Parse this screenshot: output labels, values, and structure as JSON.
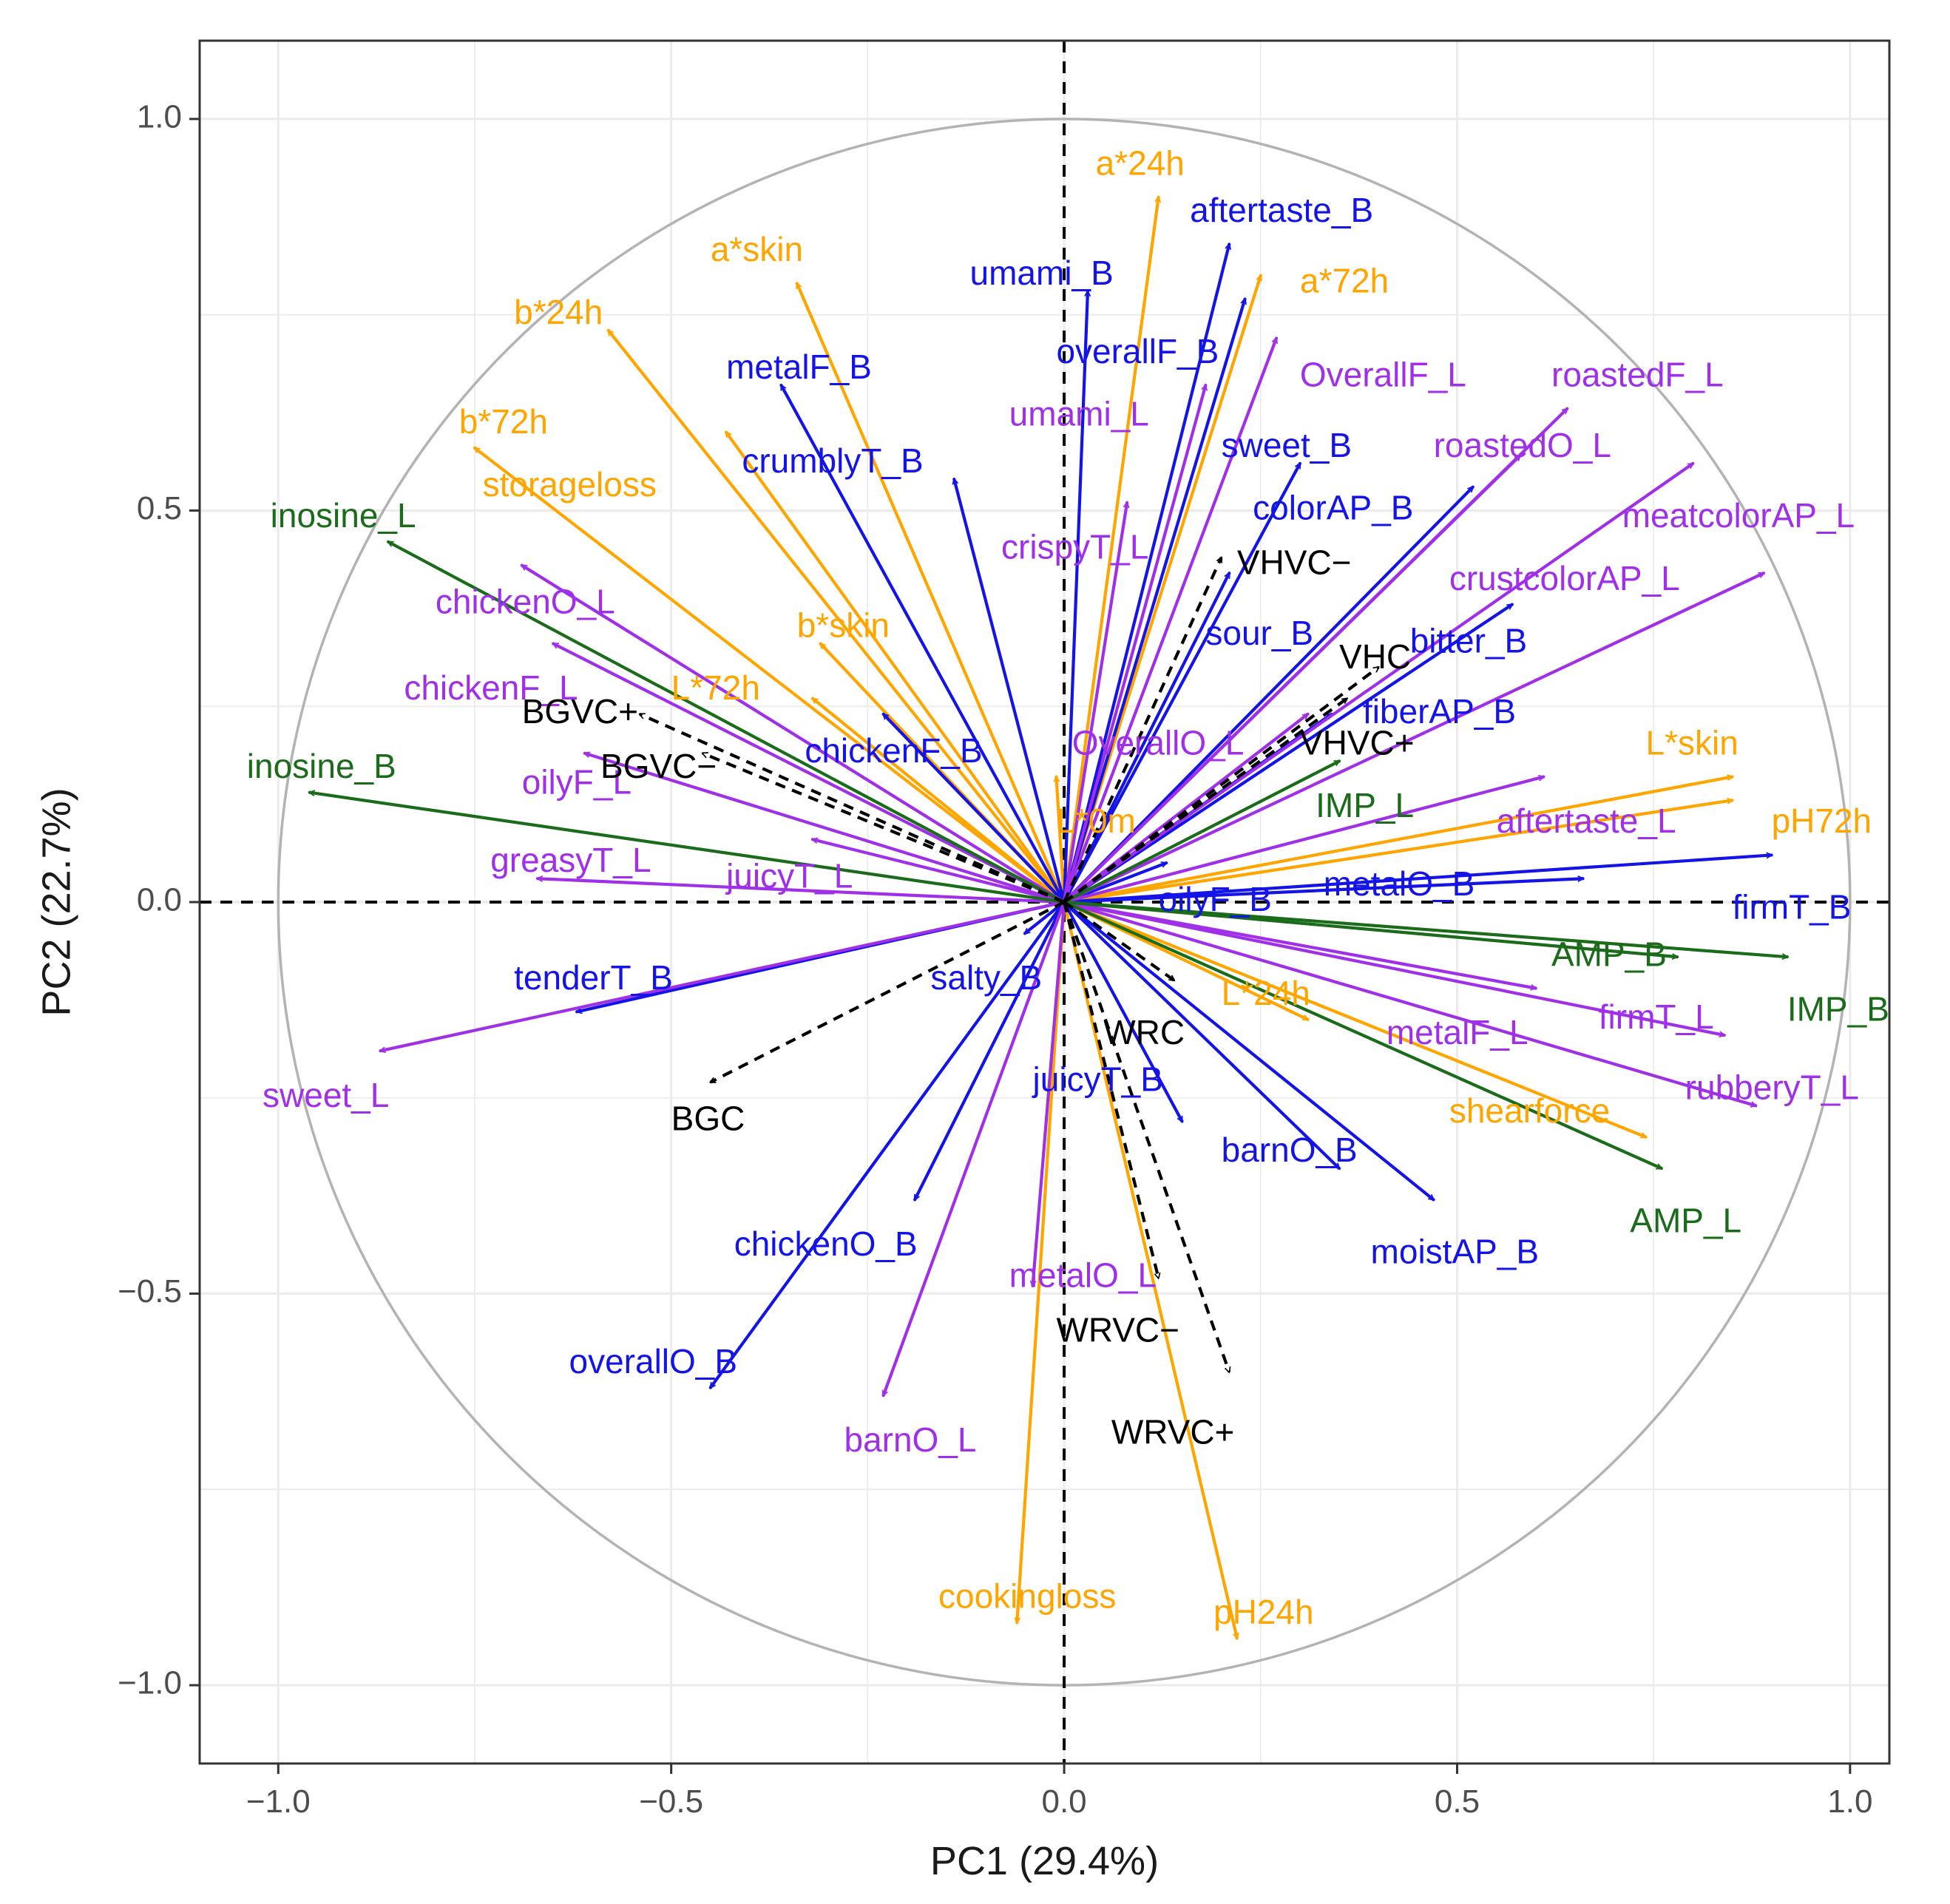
{
  "chart_data": {
    "type": "scatter",
    "subtype": "pca-biplot-correlation-circle",
    "title": "",
    "xlabel": "PC1 (29.4%)",
    "ylabel": "PC2 (22.7%)",
    "xlim": [
      -1.1,
      1.05
    ],
    "ylim": [
      -1.1,
      1.1
    ],
    "x_ticks": [
      -1.0,
      -0.5,
      0.0,
      0.5,
      1.0
    ],
    "x_tick_labels": [
      "−1.0",
      "−0.5",
      "0.0",
      "0.5",
      "1.0"
    ],
    "y_ticks": [
      -1.0,
      -0.5,
      0.0,
      0.5,
      1.0
    ],
    "y_tick_labels": [
      "−1.0",
      "−0.5",
      "0.0",
      "0.5",
      "1.0"
    ],
    "grid": true,
    "unit_circle": true,
    "reference_lines": "dashed lines at x = 0 and y = 0",
    "colors": {
      "orange": "#FFA500",
      "blue": "#1414E6",
      "purple": "#A030E8",
      "green": "#1A6B1A",
      "black": "#000000"
    },
    "vectors": [
      {
        "label": "a*24h",
        "color": "orange",
        "x": 0.12,
        "y": 0.9
      },
      {
        "label": "a*72h",
        "color": "orange",
        "x": 0.25,
        "y": 0.8
      },
      {
        "label": "a*skin",
        "color": "orange",
        "x": -0.34,
        "y": 0.79
      },
      {
        "label": "b*24h",
        "color": "orange",
        "x": -0.58,
        "y": 0.73
      },
      {
        "label": "b*72h",
        "color": "orange",
        "x": -0.75,
        "y": 0.58
      },
      {
        "label": "storageloss",
        "color": "orange",
        "x": -0.43,
        "y": 0.6
      },
      {
        "label": "b*skin",
        "color": "orange",
        "x": -0.31,
        "y": 0.33
      },
      {
        "label": "L*72h",
        "color": "orange",
        "x": -0.32,
        "y": 0.26
      },
      {
        "label": "L*skin",
        "color": "orange",
        "x": 0.85,
        "y": 0.16
      },
      {
        "label": "pH72h",
        "color": "orange",
        "x": 0.85,
        "y": 0.13
      },
      {
        "label": "L*24h",
        "color": "orange",
        "x": 0.31,
        "y": -0.15
      },
      {
        "label": "shearforce",
        "color": "orange",
        "x": 0.74,
        "y": -0.3
      },
      {
        "label": "cookingloss",
        "color": "orange",
        "x": -0.06,
        "y": -0.92
      },
      {
        "label": "pH24h",
        "color": "orange",
        "x": 0.22,
        "y": -0.94
      },
      {
        "label": "L*0m",
        "color": "orange",
        "x": -0.01,
        "y": 0.16
      },
      {
        "label": "aftertaste_B",
        "color": "blue",
        "x": 0.21,
        "y": 0.84
      },
      {
        "label": "umami_B",
        "color": "blue",
        "x": 0.03,
        "y": 0.78
      },
      {
        "label": "overallF_B",
        "color": "blue",
        "x": 0.23,
        "y": 0.77
      },
      {
        "label": "metalF_B",
        "color": "blue",
        "x": -0.36,
        "y": 0.66
      },
      {
        "label": "crumblyT_B",
        "color": "blue",
        "x": -0.14,
        "y": 0.54
      },
      {
        "label": "sweet_B",
        "color": "blue",
        "x": 0.3,
        "y": 0.56
      },
      {
        "label": "colorAP_B",
        "color": "blue",
        "x": 0.52,
        "y": 0.53
      },
      {
        "label": "sour_B",
        "color": "blue",
        "x": 0.21,
        "y": 0.42
      },
      {
        "label": "bitter_B",
        "color": "blue",
        "x": 0.57,
        "y": 0.38
      },
      {
        "label": "fiberAP_B",
        "color": "blue",
        "x": 0.34,
        "y": 0.24
      },
      {
        "label": "chickenF_B",
        "color": "blue",
        "x": -0.23,
        "y": 0.24
      },
      {
        "label": "metalO_B",
        "color": "blue",
        "x": 0.66,
        "y": 0.03
      },
      {
        "label": "firmT_B",
        "color": "blue",
        "x": 0.9,
        "y": 0.06
      },
      {
        "label": "oilyF_B",
        "color": "blue",
        "x": 0.13,
        "y": 0.05
      },
      {
        "label": "tenderT_B",
        "color": "blue",
        "x": -0.62,
        "y": -0.14
      },
      {
        "label": "salty_B",
        "color": "blue",
        "x": -0.05,
        "y": -0.04
      },
      {
        "label": "juicyT_B",
        "color": "blue",
        "x": 0.15,
        "y": -0.28
      },
      {
        "label": "barnO_B",
        "color": "blue",
        "x": 0.35,
        "y": -0.34
      },
      {
        "label": "moistAP_B",
        "color": "blue",
        "x": 0.47,
        "y": -0.38
      },
      {
        "label": "chickenO_B",
        "color": "blue",
        "x": -0.19,
        "y": -0.38
      },
      {
        "label": "overallO_B",
        "color": "blue",
        "x": -0.45,
        "y": -0.62
      },
      {
        "label": "OverallF_L",
        "color": "purple",
        "x": 0.27,
        "y": 0.72
      },
      {
        "label": "umami_L",
        "color": "purple",
        "x": 0.18,
        "y": 0.66
      },
      {
        "label": "roastedF_L",
        "color": "purple",
        "x": 0.64,
        "y": 0.63
      },
      {
        "label": "roastedO_L",
        "color": "purple",
        "x": 0.58,
        "y": 0.57
      },
      {
        "label": "meatcolorAP_L",
        "color": "purple",
        "x": 0.8,
        "y": 0.56
      },
      {
        "label": "crustcolorAP_L",
        "color": "purple",
        "x": 0.89,
        "y": 0.42
      },
      {
        "label": "crispyT_L",
        "color": "purple",
        "x": 0.08,
        "y": 0.51
      },
      {
        "label": "chickenO_L",
        "color": "purple",
        "x": -0.69,
        "y": 0.43
      },
      {
        "label": "chickenF_L",
        "color": "purple",
        "x": -0.65,
        "y": 0.33
      },
      {
        "label": "oilyF_L",
        "color": "purple",
        "x": -0.61,
        "y": 0.19
      },
      {
        "label": "greasyT_L",
        "color": "purple",
        "x": -0.67,
        "y": 0.03
      },
      {
        "label": "juicyT_L",
        "color": "purple",
        "x": -0.32,
        "y": 0.08
      },
      {
        "label": "OverallO_L",
        "color": "purple",
        "x": 0.31,
        "y": 0.24
      },
      {
        "label": "aftertaste_L",
        "color": "purple",
        "x": 0.61,
        "y": 0.16
      },
      {
        "label": "metalF_L",
        "color": "purple",
        "x": 0.6,
        "y": -0.11
      },
      {
        "label": "firmT_L",
        "color": "purple",
        "x": 0.84,
        "y": -0.17
      },
      {
        "label": "rubberyT_L",
        "color": "purple",
        "x": 0.88,
        "y": -0.26
      },
      {
        "label": "sweet_L",
        "color": "purple",
        "x": -0.87,
        "y": -0.19
      },
      {
        "label": "metalO_L",
        "color": "purple",
        "x": -0.04,
        "y": -0.49
      },
      {
        "label": "barnO_L",
        "color": "purple",
        "x": -0.23,
        "y": -0.63
      },
      {
        "label": "inosine_L",
        "color": "green",
        "x": -0.86,
        "y": 0.46
      },
      {
        "label": "inosine_B",
        "color": "green",
        "x": -0.96,
        "y": 0.14
      },
      {
        "label": "IMP_L",
        "color": "green",
        "x": 0.35,
        "y": 0.18
      },
      {
        "label": "AMP_B",
        "color": "green",
        "x": 0.78,
        "y": -0.07
      },
      {
        "label": "IMP_B",
        "color": "green",
        "x": 0.92,
        "y": -0.07
      },
      {
        "label": "AMP_L",
        "color": "green",
        "x": 0.76,
        "y": -0.34
      }
    ],
    "supplementary_vectors": [
      {
        "label": "VHVC−",
        "x": 0.2,
        "y": 0.44
      },
      {
        "label": "VHC",
        "x": 0.4,
        "y": 0.3
      },
      {
        "label": "VHVC+",
        "x": 0.36,
        "y": 0.26
      },
      {
        "label": "BGVC+",
        "x": -0.54,
        "y": 0.24
      },
      {
        "label": "BGVC−",
        "x": -0.46,
        "y": 0.19
      },
      {
        "label": "BGC",
        "x": -0.45,
        "y": -0.23
      },
      {
        "label": "WRC",
        "x": 0.14,
        "y": -0.1
      },
      {
        "label": "WRVC−",
        "x": 0.12,
        "y": -0.48
      },
      {
        "label": "WRVC+",
        "x": 0.21,
        "y": -0.6
      }
    ],
    "label_overlay": [
      {
        "text": "a*24h",
        "color": "orange",
        "lx": 0.04,
        "ly": 0.94,
        "anchor": "start"
      },
      {
        "text": "a*72h",
        "color": "orange",
        "lx": 0.3,
        "ly": 0.79,
        "anchor": "start"
      },
      {
        "text": "a*skin",
        "color": "orange",
        "lx": -0.45,
        "ly": 0.83,
        "anchor": "start"
      },
      {
        "text": "b*24h",
        "color": "orange",
        "lx": -0.7,
        "ly": 0.75,
        "anchor": "start"
      },
      {
        "text": "b*72h",
        "color": "orange",
        "lx": -0.77,
        "ly": 0.61,
        "anchor": "start"
      },
      {
        "text": "storageloss",
        "color": "orange",
        "lx": -0.74,
        "ly": 0.53,
        "anchor": "start"
      },
      {
        "text": "b*skin",
        "color": "orange",
        "lx": -0.34,
        "ly": 0.35,
        "anchor": "start"
      },
      {
        "text": "L*72h",
        "color": "orange",
        "lx": -0.5,
        "ly": 0.27,
        "anchor": "start"
      },
      {
        "text": "L*skin",
        "color": "orange",
        "lx": 0.74,
        "ly": 0.2,
        "anchor": "start"
      },
      {
        "text": "pH72h",
        "color": "orange",
        "lx": 0.9,
        "ly": 0.1,
        "anchor": "start"
      },
      {
        "text": "L*24h",
        "color": "orange",
        "lx": 0.2,
        "ly": -0.12,
        "anchor": "start"
      },
      {
        "text": "shearforce",
        "color": "orange",
        "lx": 0.49,
        "ly": -0.27,
        "anchor": "start"
      },
      {
        "text": "cookingloss",
        "color": "orange",
        "lx": -0.16,
        "ly": -0.89,
        "anchor": "start"
      },
      {
        "text": "pH24h",
        "color": "orange",
        "lx": 0.19,
        "ly": -0.91,
        "anchor": "start"
      },
      {
        "text": "L*0m",
        "color": "orange",
        "lx": -0.01,
        "ly": 0.1,
        "anchor": "start"
      },
      {
        "text": "aftertaste_B",
        "color": "blue",
        "lx": 0.16,
        "ly": 0.88,
        "anchor": "start"
      },
      {
        "text": "umami_B",
        "color": "blue",
        "lx": -0.12,
        "ly": 0.8,
        "anchor": "start"
      },
      {
        "text": "overallF_B",
        "color": "blue",
        "lx": -0.01,
        "ly": 0.7,
        "anchor": "start"
      },
      {
        "text": "metalF_B",
        "color": "blue",
        "lx": -0.43,
        "ly": 0.68,
        "anchor": "start"
      },
      {
        "text": "crumblyT_B",
        "color": "blue",
        "lx": -0.41,
        "ly": 0.56,
        "anchor": "start"
      },
      {
        "text": "sweet_B",
        "color": "blue",
        "lx": 0.2,
        "ly": 0.58,
        "anchor": "start"
      },
      {
        "text": "colorAP_B",
        "color": "blue",
        "lx": 0.24,
        "ly": 0.5,
        "anchor": "start"
      },
      {
        "text": "sour_B",
        "color": "blue",
        "lx": 0.18,
        "ly": 0.34,
        "anchor": "start"
      },
      {
        "text": "bitter_B",
        "color": "blue",
        "lx": 0.44,
        "ly": 0.33,
        "anchor": "start"
      },
      {
        "text": "fiberAP_B",
        "color": "blue",
        "lx": 0.38,
        "ly": 0.24,
        "anchor": "start"
      },
      {
        "text": "chickenF_B",
        "color": "blue",
        "lx": -0.33,
        "ly": 0.19,
        "anchor": "start"
      },
      {
        "text": "metalO_B",
        "color": "blue",
        "lx": 0.33,
        "ly": 0.02,
        "anchor": "start"
      },
      {
        "text": "firmT_B",
        "color": "blue",
        "lx": 0.85,
        "ly": -0.01,
        "anchor": "start"
      },
      {
        "text": "oilyF_B",
        "color": "blue",
        "lx": 0.12,
        "ly": 0.0,
        "anchor": "start"
      },
      {
        "text": "tenderT_B",
        "color": "blue",
        "lx": -0.7,
        "ly": -0.1,
        "anchor": "start"
      },
      {
        "text": "salty_B",
        "color": "blue",
        "lx": -0.17,
        "ly": -0.1,
        "anchor": "start"
      },
      {
        "text": "juicyT_B",
        "color": "blue",
        "lx": -0.04,
        "ly": -0.23,
        "anchor": "start"
      },
      {
        "text": "barnO_B",
        "color": "blue",
        "lx": 0.2,
        "ly": -0.32,
        "anchor": "start"
      },
      {
        "text": "moistAP_B",
        "color": "blue",
        "lx": 0.39,
        "ly": -0.45,
        "anchor": "start"
      },
      {
        "text": "chickenO_B",
        "color": "blue",
        "lx": -0.42,
        "ly": -0.44,
        "anchor": "start"
      },
      {
        "text": "overallO_B",
        "color": "blue",
        "lx": -0.63,
        "ly": -0.59,
        "anchor": "start"
      },
      {
        "text": "OverallF_L",
        "color": "purple",
        "lx": 0.3,
        "ly": 0.67,
        "anchor": "start"
      },
      {
        "text": "umami_L",
        "color": "purple",
        "lx": -0.07,
        "ly": 0.62,
        "anchor": "start"
      },
      {
        "text": "roastedF_L",
        "color": "purple",
        "lx": 0.62,
        "ly": 0.67,
        "anchor": "start"
      },
      {
        "text": "roastedO_L",
        "color": "purple",
        "lx": 0.47,
        "ly": 0.58,
        "anchor": "start"
      },
      {
        "text": "meatcolorAP_L",
        "color": "purple",
        "lx": 0.71,
        "ly": 0.49,
        "anchor": "start"
      },
      {
        "text": "crustcolorAP_L",
        "color": "purple",
        "lx": 0.49,
        "ly": 0.41,
        "anchor": "start"
      },
      {
        "text": "crispyT_L",
        "color": "purple",
        "lx": -0.08,
        "ly": 0.45,
        "anchor": "start"
      },
      {
        "text": "chickenO_L",
        "color": "purple",
        "lx": -0.8,
        "ly": 0.38,
        "anchor": "start"
      },
      {
        "text": "chickenF_L",
        "color": "purple",
        "lx": -0.84,
        "ly": 0.27,
        "anchor": "start"
      },
      {
        "text": "oilyF_L",
        "color": "purple",
        "lx": -0.69,
        "ly": 0.15,
        "anchor": "start"
      },
      {
        "text": "greasyT_L",
        "color": "purple",
        "lx": -0.73,
        "ly": 0.05,
        "anchor": "start"
      },
      {
        "text": "juicyT_L",
        "color": "purple",
        "lx": -0.43,
        "ly": 0.03,
        "anchor": "start"
      },
      {
        "text": "OverallO_L",
        "color": "purple",
        "lx": 0.01,
        "ly": 0.2,
        "anchor": "start"
      },
      {
        "text": "aftertaste_L",
        "color": "purple",
        "lx": 0.55,
        "ly": 0.1,
        "anchor": "start"
      },
      {
        "text": "metalF_L",
        "color": "purple",
        "lx": 0.41,
        "ly": -0.17,
        "anchor": "start"
      },
      {
        "text": "firmT_L",
        "color": "purple",
        "lx": 0.68,
        "ly": -0.15,
        "anchor": "start"
      },
      {
        "text": "rubberyT_L",
        "color": "purple",
        "lx": 0.79,
        "ly": -0.24,
        "anchor": "start"
      },
      {
        "text": "sweet_L",
        "color": "purple",
        "lx": -1.02,
        "ly": -0.25,
        "anchor": "start"
      },
      {
        "text": "metalO_L",
        "color": "purple",
        "lx": -0.07,
        "ly": -0.48,
        "anchor": "start"
      },
      {
        "text": "barnO_L",
        "color": "purple",
        "lx": -0.28,
        "ly": -0.69,
        "anchor": "start"
      },
      {
        "text": "inosine_L",
        "color": "green",
        "lx": -1.01,
        "ly": 0.49,
        "anchor": "start"
      },
      {
        "text": "inosine_B",
        "color": "green",
        "lx": -1.04,
        "ly": 0.17,
        "anchor": "start"
      },
      {
        "text": "IMP_L",
        "color": "green",
        "lx": 0.32,
        "ly": 0.12,
        "anchor": "start"
      },
      {
        "text": "AMP_B",
        "color": "green",
        "lx": 0.62,
        "ly": -0.07,
        "anchor": "start"
      },
      {
        "text": "IMP_B",
        "color": "green",
        "lx": 0.92,
        "ly": -0.14,
        "anchor": "start"
      },
      {
        "text": "AMP_L",
        "color": "green",
        "lx": 0.72,
        "ly": -0.41,
        "anchor": "start"
      },
      {
        "text": "VHVC−",
        "color": "black",
        "lx": 0.22,
        "ly": 0.43,
        "anchor": "start"
      },
      {
        "text": "VHC",
        "color": "black",
        "lx": 0.35,
        "ly": 0.31,
        "anchor": "start"
      },
      {
        "text": "VHVC+",
        "color": "black",
        "lx": 0.3,
        "ly": 0.2,
        "anchor": "start"
      },
      {
        "text": "BGVC+",
        "color": "black",
        "lx": -0.69,
        "ly": 0.24,
        "anchor": "start"
      },
      {
        "text": "BGVC−",
        "color": "black",
        "lx": -0.59,
        "ly": 0.17,
        "anchor": "start"
      },
      {
        "text": "BGC",
        "color": "black",
        "lx": -0.5,
        "ly": -0.28,
        "anchor": "start"
      },
      {
        "text": "WRC",
        "color": "black",
        "lx": 0.05,
        "ly": -0.17,
        "anchor": "start"
      },
      {
        "text": "WRVC−",
        "color": "black",
        "lx": -0.01,
        "ly": -0.55,
        "anchor": "start"
      },
      {
        "text": "WRVC+",
        "color": "black",
        "lx": 0.06,
        "ly": -0.68,
        "anchor": "start"
      }
    ]
  }
}
